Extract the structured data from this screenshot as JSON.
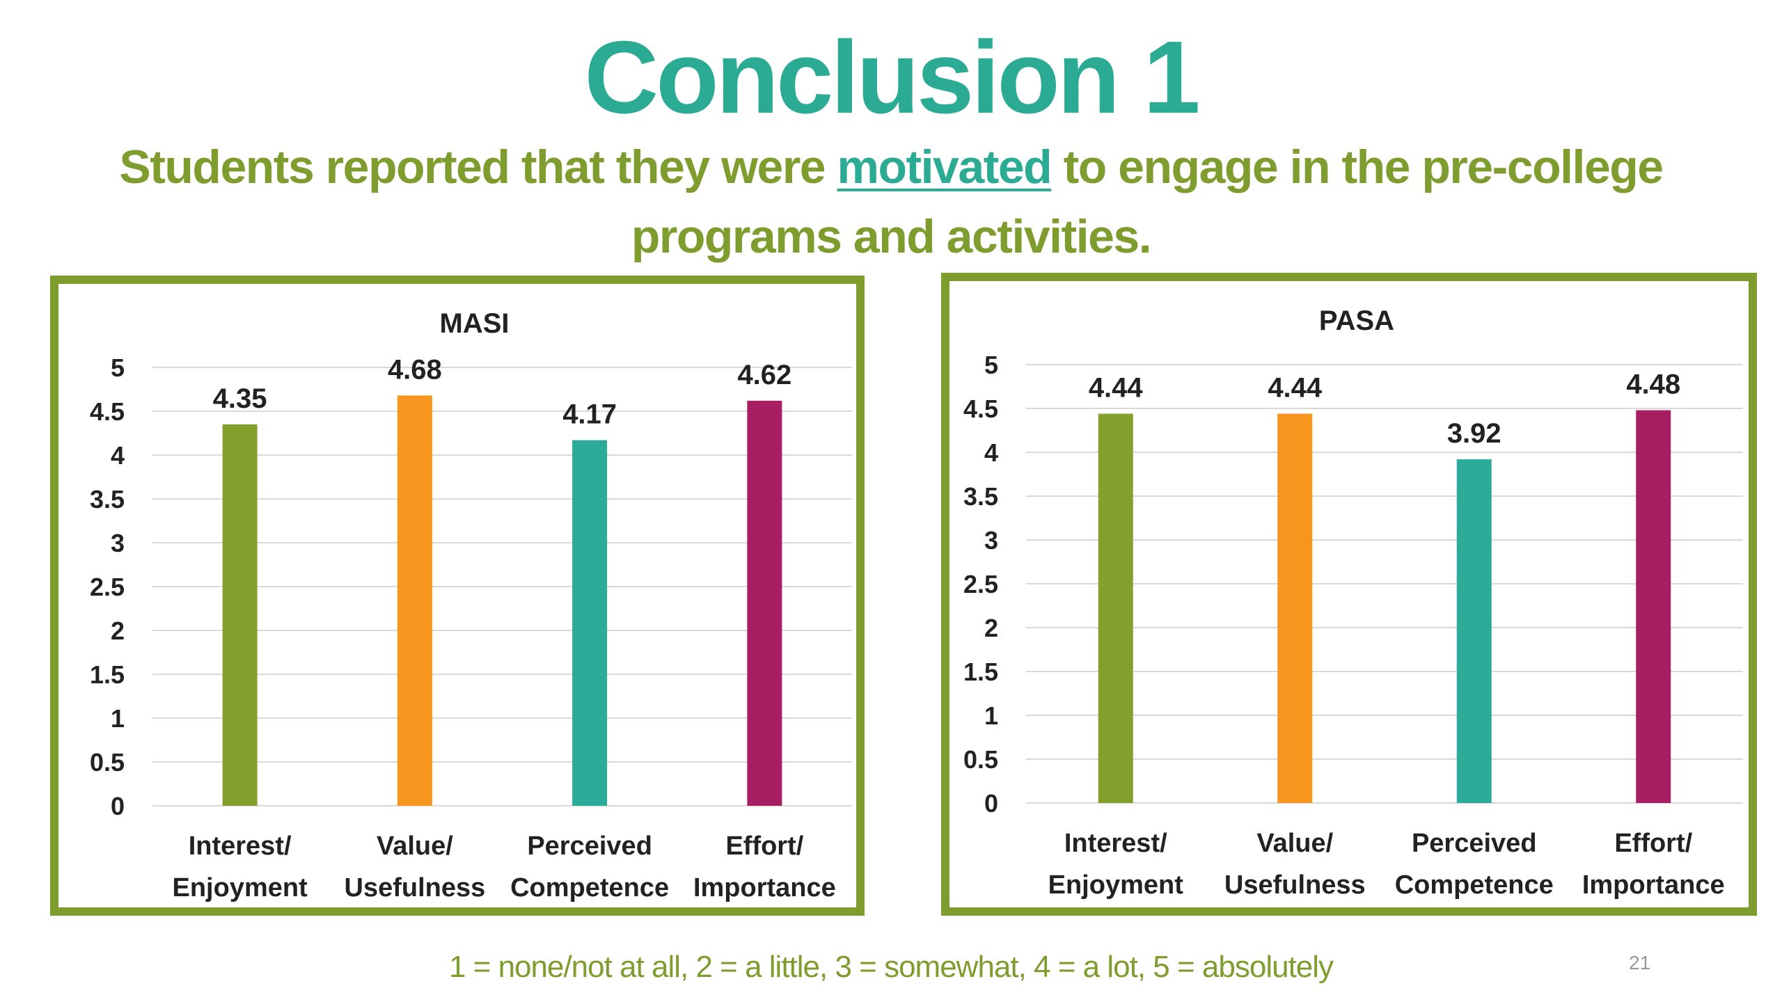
{
  "slide": {
    "title": "Conclusion 1",
    "subtitle_before": "Students reported that they were ",
    "subtitle_emphasis": "motivated",
    "subtitle_after": " to engage in the pre-college programs and activities.",
    "footnote": "1 = none/not at all, 2 = a little, 3 = somewhat, 4 = a lot, 5 = absolutely",
    "page_number": "21"
  },
  "colors": {
    "title": "#2bab94",
    "subtitle": "#7f9c2e",
    "panel_border": "#7f9c2e",
    "grid": "#d9d9d9",
    "text": "#222222"
  },
  "chart_data": [
    {
      "type": "bar",
      "title": "MASI",
      "categories": [
        [
          "Interest/",
          "Enjoyment"
        ],
        [
          "Value/",
          "Usefulness"
        ],
        [
          "Perceived",
          "Competence"
        ],
        [
          "Effort/",
          "Importance"
        ]
      ],
      "values": [
        4.35,
        4.68,
        4.17,
        4.62
      ],
      "value_labels": [
        "4.35",
        "4.68",
        "4.17",
        "4.62"
      ],
      "bar_colors": [
        "#83a02d",
        "#f7961e",
        "#2bab98",
        "#a81e62"
      ],
      "ylim": [
        0,
        5
      ],
      "yticks": [
        0,
        0.5,
        1,
        1.5,
        2,
        2.5,
        3,
        3.5,
        4,
        4.5,
        5
      ],
      "ytick_labels": [
        "0",
        "0.5",
        "1",
        "1.5",
        "2",
        "2.5",
        "3",
        "3.5",
        "4",
        "4.5",
        "5"
      ],
      "xlabel": "",
      "ylabel": "",
      "grid": true,
      "legend": "none"
    },
    {
      "type": "bar",
      "title": "PASA",
      "categories": [
        [
          "Interest/",
          "Enjoyment"
        ],
        [
          "Value/",
          "Usefulness"
        ],
        [
          "Perceived",
          "Competence"
        ],
        [
          "Effort/",
          "Importance"
        ]
      ],
      "values": [
        4.44,
        4.44,
        3.92,
        4.48
      ],
      "value_labels": [
        "4.44",
        "4.44",
        "3.92",
        "4.48"
      ],
      "bar_colors": [
        "#83a02d",
        "#f7961e",
        "#2bab98",
        "#a81e62"
      ],
      "ylim": [
        0,
        5
      ],
      "yticks": [
        0,
        0.5,
        1,
        1.5,
        2,
        2.5,
        3,
        3.5,
        4,
        4.5,
        5
      ],
      "ytick_labels": [
        "0",
        "0.5",
        "1",
        "1.5",
        "2",
        "2.5",
        "3",
        "3.5",
        "4",
        "4.5",
        "5"
      ],
      "xlabel": "",
      "ylabel": "",
      "grid": true,
      "legend": "none"
    }
  ]
}
